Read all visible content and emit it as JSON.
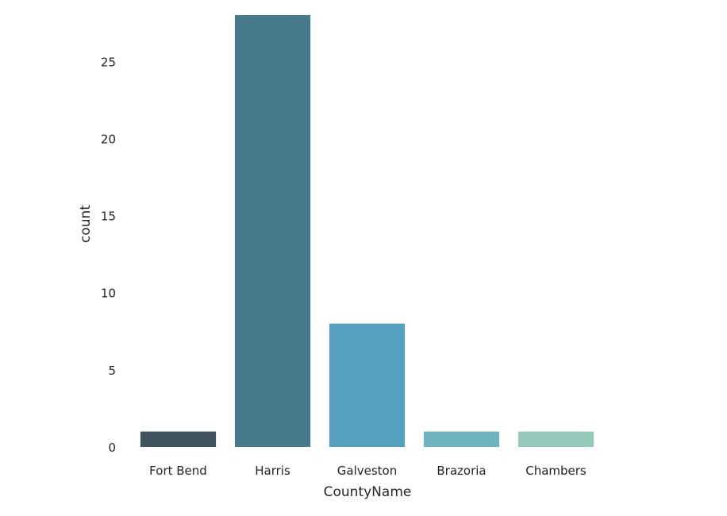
{
  "chart_data": {
    "type": "bar",
    "categories": [
      "Fort Bend",
      "Harris",
      "Galveston",
      "Brazoria",
      "Chambers"
    ],
    "values": [
      1,
      28,
      8,
      1,
      1
    ],
    "colors": [
      "#3e535b",
      "#487a8e",
      "#54a0bf",
      "#6fb3c1",
      "#95c9bb"
    ],
    "xlabel": "CountyName",
    "ylabel": "count",
    "ylim": [
      0,
      28
    ],
    "yticks": [
      "0",
      "5",
      "10",
      "15",
      "20",
      "25"
    ],
    "grid": false,
    "legend": "none"
  }
}
